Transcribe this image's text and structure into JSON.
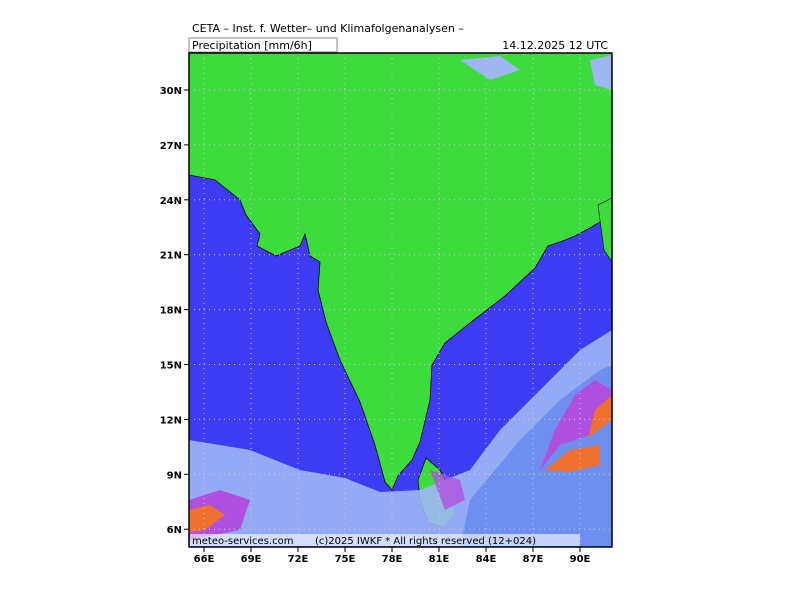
{
  "header": {
    "title": "CETA – Inst. f. Wetter– und Klimafolgenanalysen –",
    "subtitle": "Precipitation [mm/6h]",
    "date": "14.12.2025  12 UTC"
  },
  "map": {
    "lat_ticks": [
      "30N",
      "27N",
      "24N",
      "21N",
      "18N",
      "15N",
      "12N",
      "9N",
      "6N"
    ],
    "lon_ticks": [
      "66E",
      "69E",
      "72E",
      "75E",
      "78E",
      "81E",
      "84E",
      "87E",
      "90E"
    ]
  },
  "footer": {
    "site": "meteo-services.com",
    "copyright": "(c)2025 IWKF * All rights reserved (12+024)"
  }
}
